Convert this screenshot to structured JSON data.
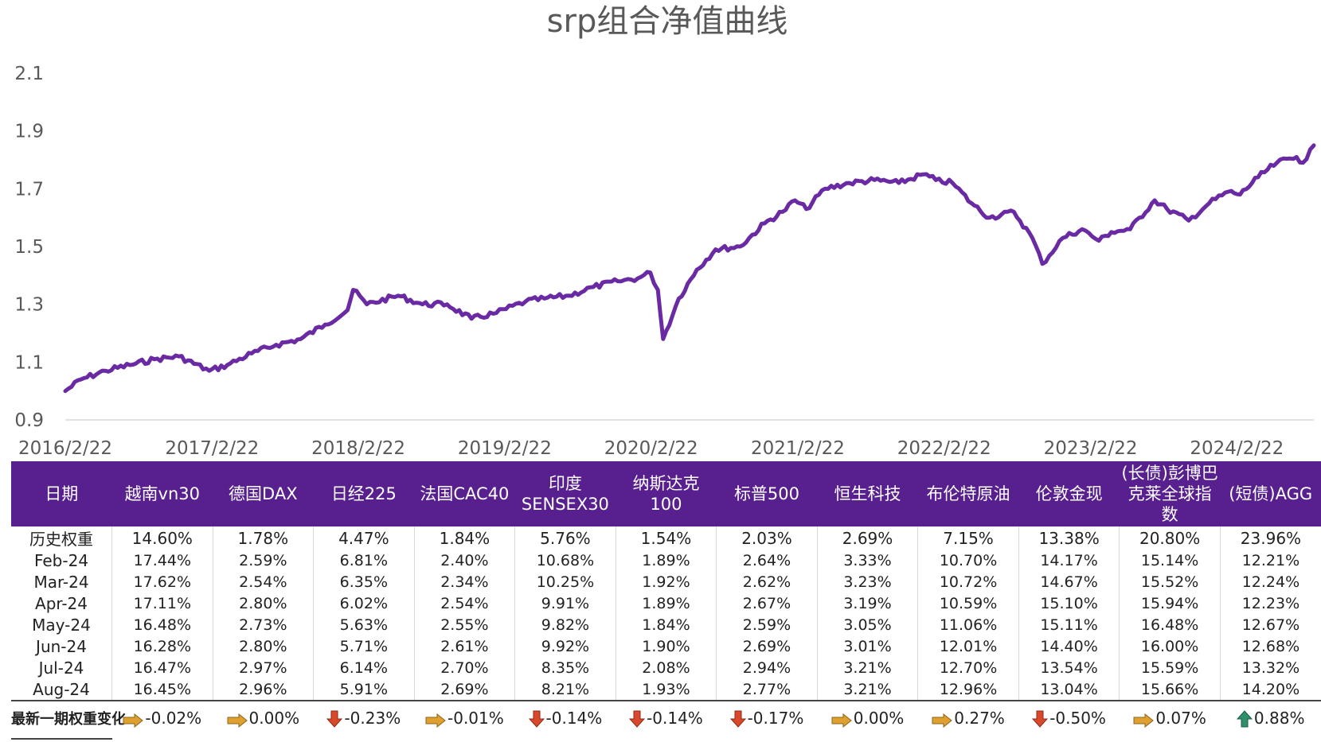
{
  "chart_data": {
    "type": "line",
    "title": "srp组合净值曲线",
    "xlabel": "",
    "ylabel": "",
    "ylim": [
      0.9,
      2.1
    ],
    "y_ticks": [
      "0.9",
      "1.1",
      "1.3",
      "1.5",
      "1.7",
      "1.9",
      "2.1"
    ],
    "x_ticks": [
      "2016/2/22",
      "2017/2/22",
      "2018/2/22",
      "2019/2/22",
      "2020/2/22",
      "2021/2/22",
      "2022/2/22",
      "2023/2/22",
      "2024/2/22"
    ],
    "grid": false,
    "line_color": "#6a2aa3",
    "series": [
      {
        "x": [
          "2016-02-22",
          "2016-04-01",
          "2016-06-01",
          "2016-08-01",
          "2016-10-01",
          "2016-12-01",
          "2017-02-15",
          "2017-04-01",
          "2017-06-01",
          "2017-08-01",
          "2017-10-01",
          "2017-12-01",
          "2018-01-26",
          "2018-02-09",
          "2018-03-15",
          "2018-06-01",
          "2018-08-01",
          "2018-10-01",
          "2018-12-01",
          "2019-02-01",
          "2019-04-15",
          "2019-06-01",
          "2019-08-01",
          "2019-10-01",
          "2019-12-01",
          "2020-01-20",
          "2020-02-20",
          "2020-03-10",
          "2020-03-23",
          "2020-05-01",
          "2020-06-15",
          "2020-08-01",
          "2020-10-01",
          "2020-12-01",
          "2021-01-15",
          "2021-02-15",
          "2021-03-15",
          "2021-05-01",
          "2021-07-01",
          "2021-09-01",
          "2021-11-01",
          "2022-01-01",
          "2022-02-01",
          "2022-03-15",
          "2022-05-01",
          "2022-06-15",
          "2022-08-15",
          "2022-09-30",
          "2022-10-25",
          "2022-12-15",
          "2023-02-01",
          "2023-03-15",
          "2023-04-15",
          "2023-06-01",
          "2023-08-01",
          "2023-09-01",
          "2023-10-25",
          "2023-12-15",
          "2024-02-01",
          "2024-03-01",
          "2024-04-15",
          "2024-06-01",
          "2024-07-20",
          "2024-08-05",
          "2024-09-01"
        ],
        "y": [
          1.0,
          1.04,
          1.07,
          1.09,
          1.11,
          1.12,
          1.07,
          1.09,
          1.13,
          1.16,
          1.18,
          1.23,
          1.28,
          1.35,
          1.3,
          1.33,
          1.3,
          1.3,
          1.25,
          1.27,
          1.31,
          1.32,
          1.33,
          1.36,
          1.38,
          1.39,
          1.41,
          1.35,
          1.18,
          1.32,
          1.42,
          1.49,
          1.5,
          1.58,
          1.62,
          1.66,
          1.63,
          1.7,
          1.72,
          1.73,
          1.72,
          1.75,
          1.73,
          1.72,
          1.65,
          1.6,
          1.62,
          1.53,
          1.44,
          1.53,
          1.56,
          1.52,
          1.55,
          1.56,
          1.66,
          1.63,
          1.59,
          1.65,
          1.69,
          1.68,
          1.74,
          1.79,
          1.81,
          1.79,
          1.85
        ]
      }
    ]
  },
  "table": {
    "columns": [
      "日期",
      "越南vn30",
      "德国DAX",
      "日经225",
      "法国CAC40",
      "印度SENSEX30",
      "纳斯达克100",
      "标普500",
      "恒生科技",
      "布伦特原油",
      "伦敦金现",
      "(长债)彭博巴克莱全球指数",
      "(短债)AGG"
    ],
    "rows": [
      {
        "label": "历史权重",
        "values": [
          "14.60%",
          "1.78%",
          "4.47%",
          "1.84%",
          "5.76%",
          "1.54%",
          "2.03%",
          "2.69%",
          "7.15%",
          "13.38%",
          "20.80%",
          "23.96%"
        ]
      },
      {
        "label": "Feb-24",
        "values": [
          "17.44%",
          "2.59%",
          "6.81%",
          "2.40%",
          "10.68%",
          "1.89%",
          "2.64%",
          "3.33%",
          "10.70%",
          "14.17%",
          "15.14%",
          "12.21%"
        ]
      },
      {
        "label": "Mar-24",
        "values": [
          "17.62%",
          "2.54%",
          "6.35%",
          "2.34%",
          "10.25%",
          "1.92%",
          "2.62%",
          "3.23%",
          "10.72%",
          "14.67%",
          "15.52%",
          "12.24%"
        ]
      },
      {
        "label": "Apr-24",
        "values": [
          "17.11%",
          "2.80%",
          "6.02%",
          "2.54%",
          "9.91%",
          "1.89%",
          "2.67%",
          "3.19%",
          "10.59%",
          "15.10%",
          "15.94%",
          "12.23%"
        ]
      },
      {
        "label": "May-24",
        "values": [
          "16.48%",
          "2.73%",
          "5.63%",
          "2.55%",
          "9.82%",
          "1.84%",
          "2.59%",
          "3.05%",
          "11.06%",
          "15.11%",
          "16.48%",
          "12.67%"
        ]
      },
      {
        "label": "Jun-24",
        "values": [
          "16.28%",
          "2.80%",
          "5.71%",
          "2.61%",
          "9.92%",
          "1.90%",
          "2.69%",
          "3.01%",
          "12.01%",
          "14.40%",
          "16.00%",
          "12.68%"
        ]
      },
      {
        "label": "Jul-24",
        "values": [
          "16.47%",
          "2.97%",
          "6.14%",
          "2.70%",
          "8.35%",
          "2.08%",
          "2.94%",
          "3.21%",
          "12.70%",
          "13.54%",
          "15.59%",
          "13.32%"
        ]
      },
      {
        "label": "Aug-24",
        "values": [
          "16.45%",
          "2.96%",
          "5.91%",
          "2.69%",
          "8.21%",
          "1.93%",
          "2.77%",
          "3.21%",
          "12.96%",
          "13.04%",
          "15.66%",
          "14.20%"
        ]
      }
    ],
    "change_label": "最新一期权重变化",
    "changes": [
      {
        "value": "-0.02%",
        "icon": "right-arrow-icon",
        "color": "#e0a030"
      },
      {
        "value": "0.00%",
        "icon": "right-arrow-icon",
        "color": "#e0a030"
      },
      {
        "value": "-0.23%",
        "icon": "down-arrow-icon",
        "color": "#d9482b"
      },
      {
        "value": "-0.01%",
        "icon": "right-arrow-icon",
        "color": "#e0a030"
      },
      {
        "value": "-0.14%",
        "icon": "down-arrow-icon",
        "color": "#d9482b"
      },
      {
        "value": "-0.14%",
        "icon": "down-arrow-icon",
        "color": "#d9482b"
      },
      {
        "value": "-0.17%",
        "icon": "down-arrow-icon",
        "color": "#d9482b"
      },
      {
        "value": "0.00%",
        "icon": "right-arrow-icon",
        "color": "#e0a030"
      },
      {
        "value": "0.27%",
        "icon": "right-arrow-icon",
        "color": "#e0a030"
      },
      {
        "value": "-0.50%",
        "icon": "down-arrow-icon",
        "color": "#d9482b"
      },
      {
        "value": "0.07%",
        "icon": "right-arrow-icon",
        "color": "#e0a030"
      },
      {
        "value": "0.88%",
        "icon": "up-arrow-icon",
        "color": "#2f8f6a"
      }
    ]
  }
}
